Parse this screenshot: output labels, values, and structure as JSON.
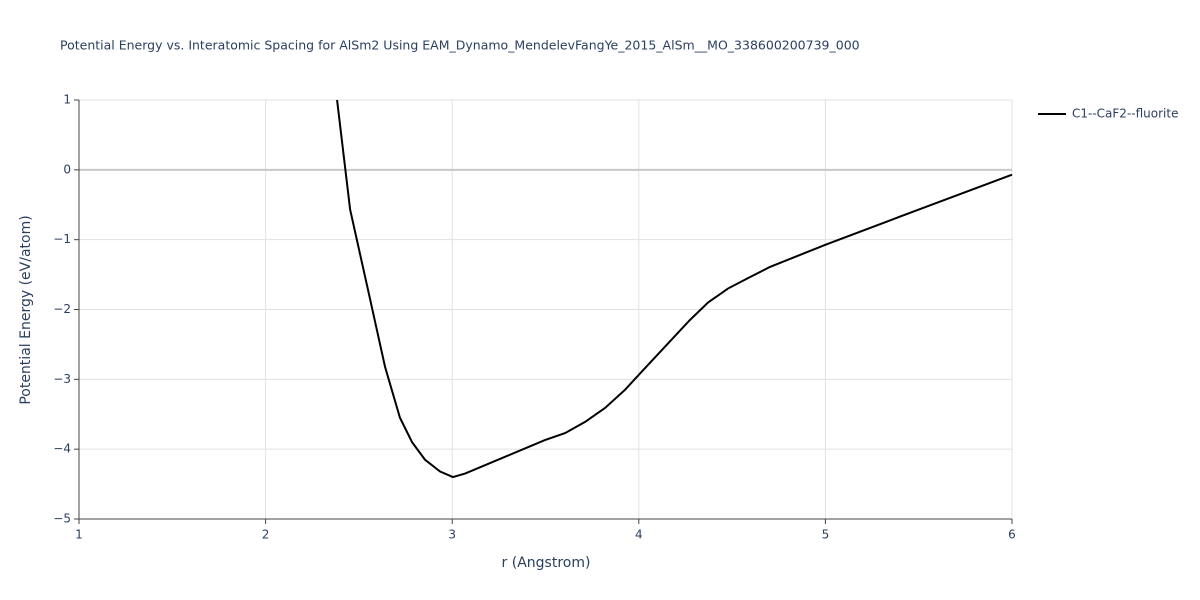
{
  "chart_data": {
    "type": "line",
    "title": "Potential Energy vs. Interatomic Spacing for AlSm2 Using EAM_Dynamo_MendelevFangYe_2015_AlSm__MO_338600200739_000",
    "x_label": "r (Angstrom)",
    "y_label": "Potential Energy (eV/atom)",
    "xlim": [
      1,
      6
    ],
    "ylim": [
      -5,
      1
    ],
    "xticks": [
      1,
      2,
      3,
      4,
      5,
      6
    ],
    "yticks": [
      {
        "value": -5,
        "label": "−5"
      },
      {
        "value": -4,
        "label": "−4"
      },
      {
        "value": -3,
        "label": "−3"
      },
      {
        "value": -2,
        "label": "−2"
      },
      {
        "value": -1,
        "label": "−1"
      },
      0,
      1
    ],
    "grid": true,
    "legend": "right",
    "series": [
      {
        "name": "C1--CaF2--fluorite",
        "color": "#000000",
        "x": [
          2.383,
          2.453,
          2.549,
          2.64,
          2.72,
          2.785,
          2.854,
          2.935,
          3.004,
          3.069,
          3.283,
          3.497,
          3.605,
          3.712,
          3.819,
          3.926,
          4.033,
          4.274,
          4.371,
          4.478,
          4.585,
          4.703,
          5.003,
          5.4,
          6.0
        ],
        "values": [
          1,
          -0.57,
          -1.72,
          -2.82,
          -3.55,
          -3.9,
          -4.15,
          -4.32,
          -4.4,
          -4.35,
          -4.11,
          -3.87,
          -3.77,
          -3.61,
          -3.41,
          -3.15,
          -2.84,
          -2.15,
          -1.9,
          -1.7,
          -1.55,
          -1.39,
          -1.07,
          -0.67,
          -0.07
        ]
      }
    ]
  }
}
